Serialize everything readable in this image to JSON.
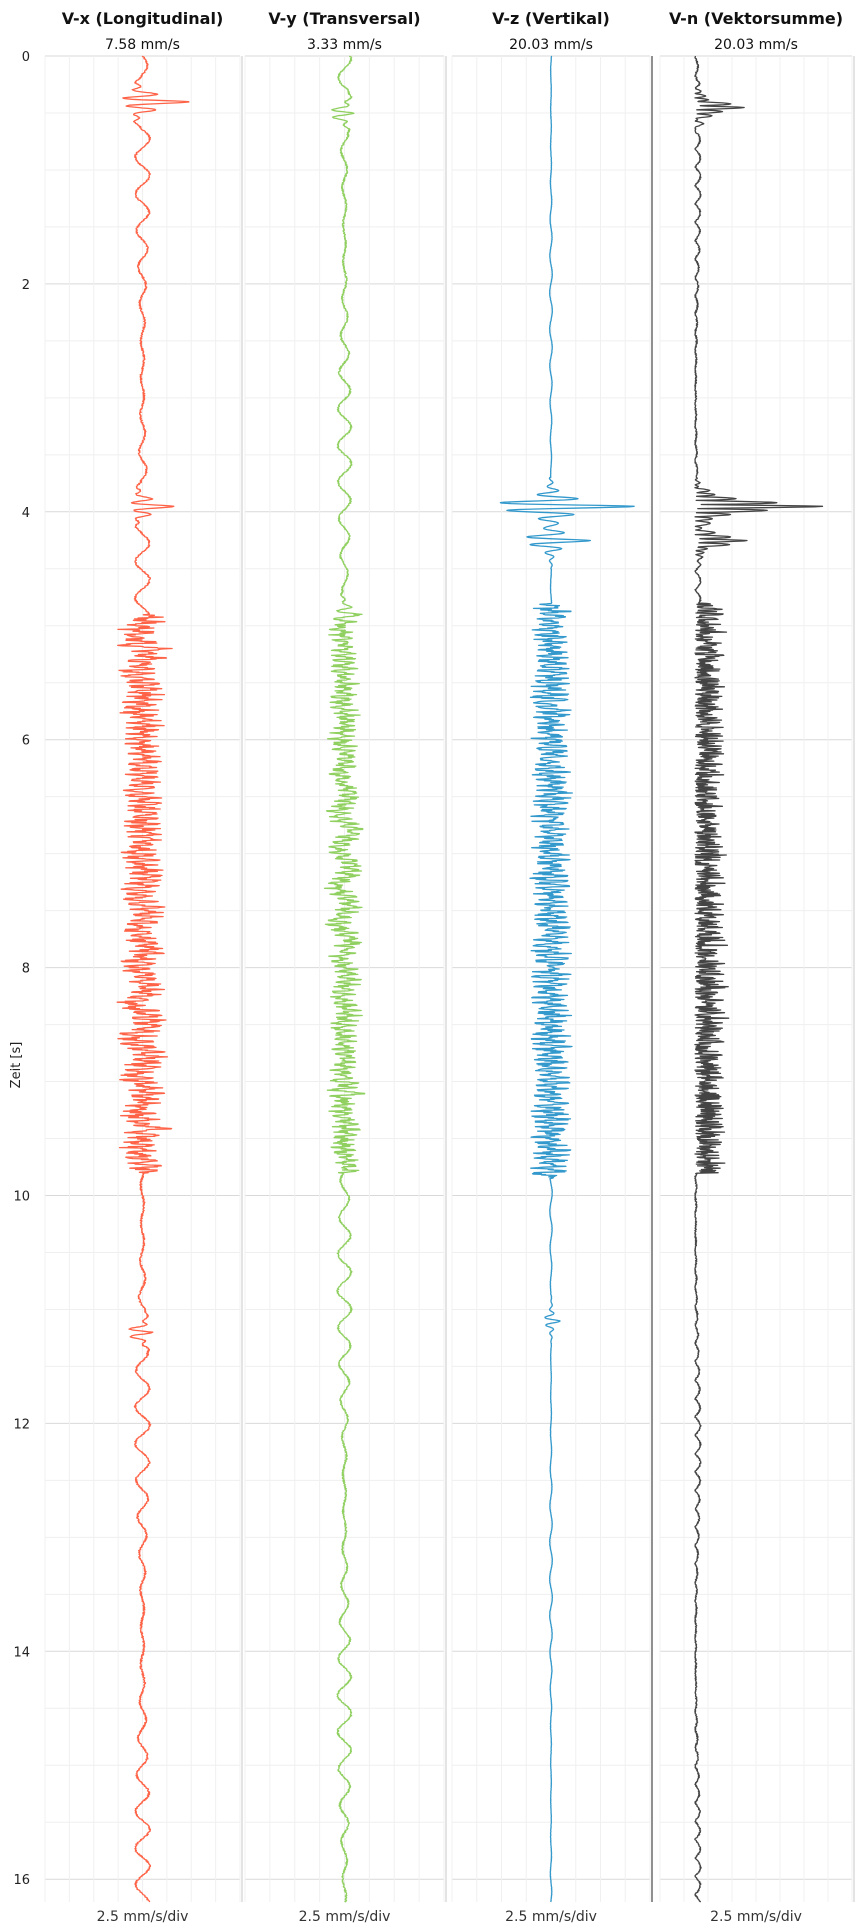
{
  "chart_data": {
    "type": "line",
    "ylabel": "Zeit [s]",
    "ylim": [
      0,
      16.2
    ],
    "y_ticks": [
      0,
      2,
      4,
      6,
      8,
      10,
      12,
      14,
      16
    ],
    "y_inverted": true,
    "grid": true,
    "panels": [
      {
        "name": "V-x (Longitudinal)",
        "peak": "7.58 mm/s",
        "scale": "2.5 mm/s/div",
        "color": "#ff6347",
        "peak_value": 7.58,
        "xlim": [
          -8,
          8
        ],
        "events": [
          {
            "t": 0.4,
            "amp": 3.5
          },
          {
            "t": 3.95,
            "amp": 2.2
          },
          {
            "t": 5.2,
            "amp": 1.4
          },
          {
            "t": 9.4,
            "amp": 1.5
          },
          {
            "t": 11.2,
            "amp": 1.3
          }
        ],
        "dense_start": 4.9,
        "dense_end": 9.8,
        "dense_amp": 0.8,
        "base_amp": 0.6
      },
      {
        "name": "V-y (Transversal)",
        "peak": "3.33 mm/s",
        "scale": "2.5 mm/s/div",
        "color": "#90d060",
        "peak_value": 3.33,
        "xlim": [
          -8,
          8
        ],
        "events": [
          {
            "t": 0.5,
            "amp": 1.2
          },
          {
            "t": 4.9,
            "amp": 1.3
          },
          {
            "t": 9.1,
            "amp": 0.9
          }
        ],
        "dense_start": 4.9,
        "dense_end": 9.8,
        "dense_amp": 0.55,
        "base_amp": 0.55
      },
      {
        "name": "V-z (Vertikal)",
        "peak": "20.03 mm/s",
        "scale": "2.5 mm/s/div",
        "color": "#3399cc",
        "peak_value": 20.03,
        "xlim": [
          -9,
          9
        ],
        "events": [
          {
            "t": 3.95,
            "amp": 8.0
          },
          {
            "t": 4.25,
            "amp": 3.8
          },
          {
            "t": 11.1,
            "amp": 0.9
          }
        ],
        "dense_start": 4.8,
        "dense_end": 9.85,
        "dense_amp": 0.9,
        "base_amp": 0.12
      },
      {
        "name": "V-n (Vektorsumme)",
        "peak": "20.03 mm/s",
        "scale": "2.5 mm/s/div",
        "color": "#444444",
        "peak_value": 20.03,
        "xlim": [
          -2,
          9
        ],
        "events": [
          {
            "t": 0.45,
            "amp": 3.5
          },
          {
            "t": 3.95,
            "amp": 8.8
          },
          {
            "t": 4.25,
            "amp": 3.8
          }
        ],
        "dense_start": 4.8,
        "dense_end": 9.8,
        "dense_amp": 0.9,
        "base_amp": 0.35
      }
    ]
  }
}
